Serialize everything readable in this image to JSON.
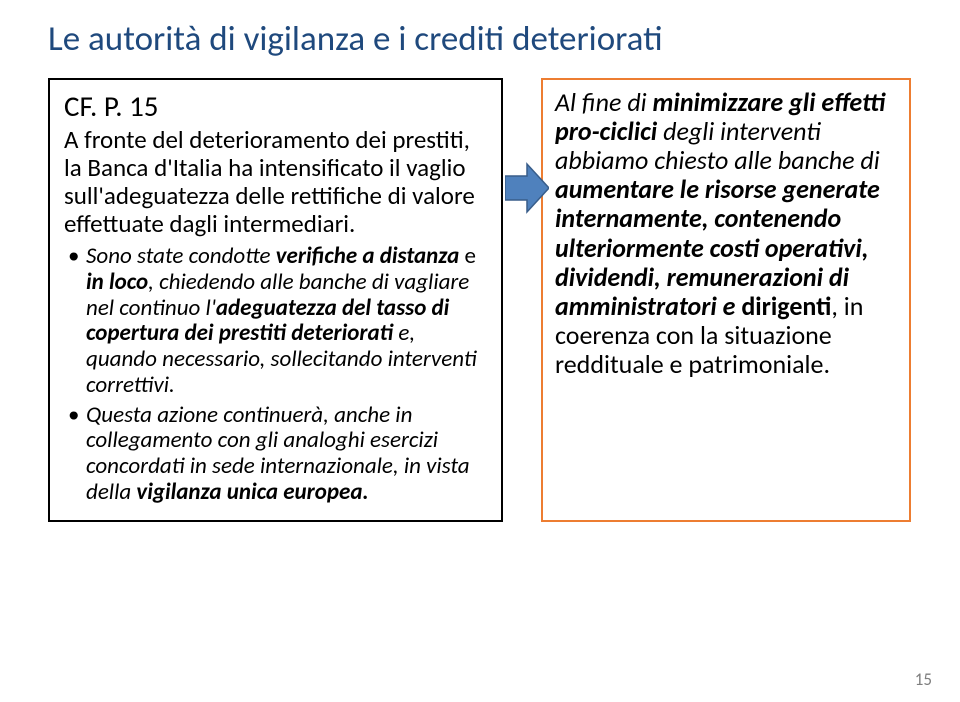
{
  "slide": {
    "title": "Le autorità di vigilanza e i crediti deteriorati",
    "ref": "CF. P. 15",
    "intro_html": "A fronte del deterioramento dei prestiti, la Banca d'Italia ha intensificato il vaglio sull'adeguatezza delle rettifiche di valore effettuate dagli intermediari.",
    "bullets": [
      "Sono state condotte <span class='b'>verifiche a distanza</span> <span class='ni'>e</span> <span class='b'>in loco</span>, chiedendo alle banche di vagliare nel continuo l'<span class='b'>adeguatezza del tasso di copertura dei prestiti deteriorati</span> e, quando necessario, sollecitando interventi correttivi.",
      "Questa azione continuerà, anche in collegamento con gli analoghi esercizi concordati in sede internazionale, in vista della <span class='b'>vigilanza unica europea.</span>"
    ],
    "right_html": "Al fine di <span class='b'>minimizzare gli effetti pro-ciclici</span> degli interventi abbiamo chiesto alle banche di <span class='b'>aumentare le risorse generate internamente, contenendo ulteriormente costi operativi, dividendi, remunerazioni di amministratori e </span><span class='b ni'>dirigenti</span><span class='ni'>, in coerenza con la situazione reddituale e patrimoniale.</span>",
    "page_number": "15",
    "colors": {
      "title": "#1f497d",
      "left_border": "#000000",
      "right_border": "#ed7d31",
      "arrow_fill": "#4f81bd",
      "arrow_stroke": "#385d8a",
      "background": "#ffffff",
      "page_num": "#7f7f7f"
    }
  }
}
